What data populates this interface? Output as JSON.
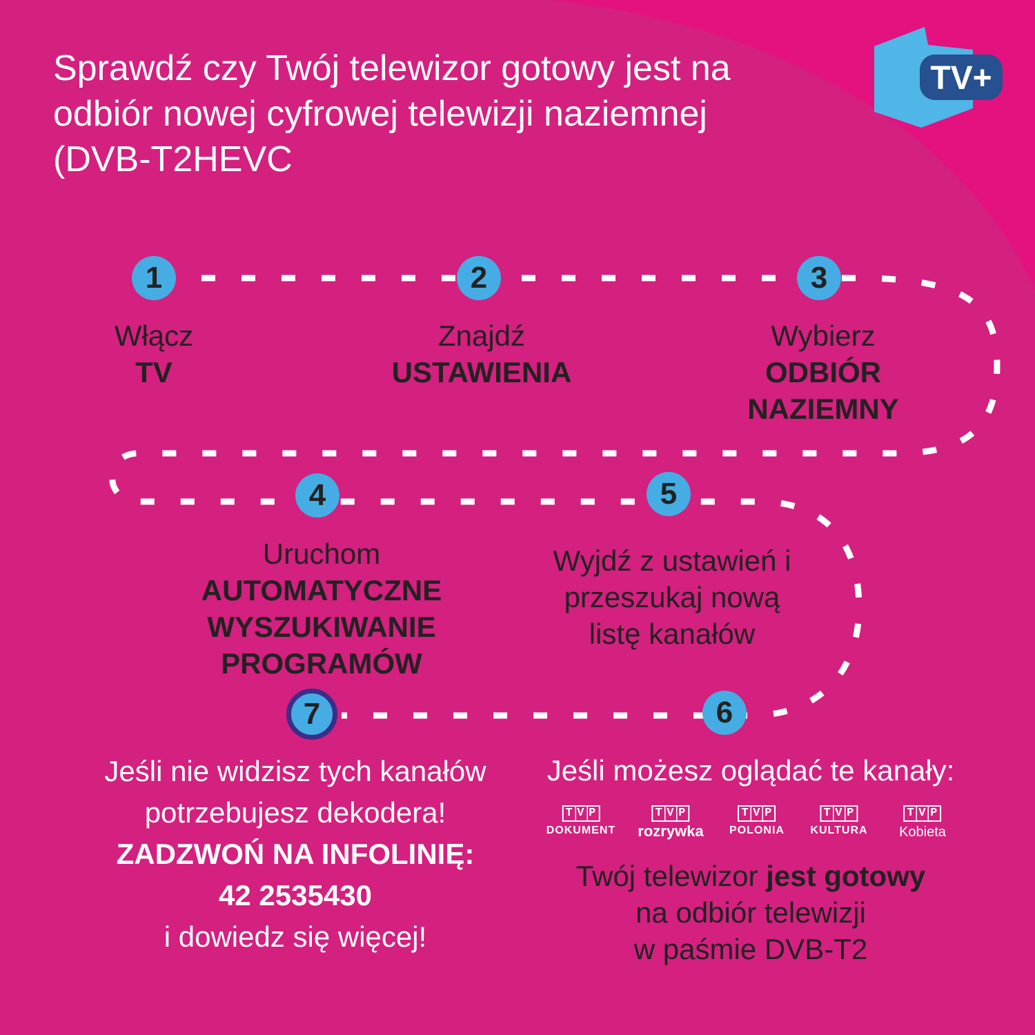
{
  "colors": {
    "background": "#d4207f",
    "corner": "#e3127f",
    "step_circle": "#45ade3",
    "step7_ring": "#3b2d8a",
    "path": "#ffffff"
  },
  "title": "Sprawdź czy Twój telewizor gotowy jest na odbiór nowej cyfrowej telewizji naziemnej (DVB-T2HEVC",
  "logo": {
    "text": "TV+"
  },
  "steps": [
    {
      "num": "1",
      "line1": "Włącz",
      "bold": "TV"
    },
    {
      "num": "2",
      "line1": "Znajdź",
      "bold": "USTAWIENIA"
    },
    {
      "num": "3",
      "line1": "Wybierz",
      "bold": "ODBIÓR NAZIEMNY"
    },
    {
      "num": "4",
      "line1": "Uruchom",
      "bold": "AUTOMATYCZNE WYSZUKIWANIE PROGRAMÓW"
    },
    {
      "num": "5",
      "text": "Wyjdź z ustawień i przeszukaj nową listę kanałów"
    },
    {
      "num": "6",
      "heading": "Jeśli możesz oglądać te kanały:",
      "result_pre": "Twój telewizor ",
      "result_bold": "jest gotowy",
      "result_rest": "na odbiór telewizji",
      "result_last": "w paśmie DVB-T2"
    },
    {
      "num": "7",
      "line1": "Jeśli nie widzisz tych kanałów",
      "line2": "potrzebujesz dekodera!",
      "bold": "ZADZWOŃ NA INFOLINIĘ:",
      "phone": "42 2535430",
      "line3": "i dowiedz się więcej!"
    }
  ],
  "channels": [
    {
      "brand": "TVP",
      "name": "DOKUMENT"
    },
    {
      "brand": "TVP",
      "name": "rozrywka"
    },
    {
      "brand": "TVP",
      "name": "POLONIA"
    },
    {
      "brand": "TVP",
      "name": "KULTURA"
    },
    {
      "brand": "TVP",
      "name": "Kobieta"
    }
  ]
}
